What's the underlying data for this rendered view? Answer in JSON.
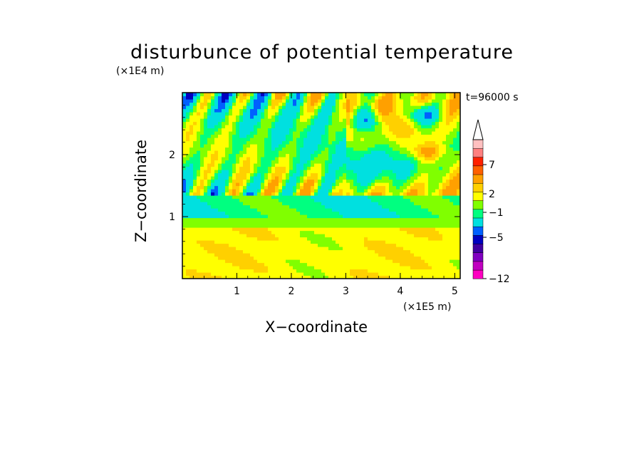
{
  "chart_data": {
    "type": "heatmap",
    "title": "disturbunce of potential temperature",
    "xlabel": "X−coordinate",
    "ylabel": "Z−coordinate",
    "x_unit": "(×1E5 m)",
    "y_unit": "(×1E4 m)",
    "annotation": "t=96000 s",
    "xlim": [
      0,
      5.1
    ],
    "ylim": [
      0,
      3.0
    ],
    "x_ticks": [
      "1",
      "2",
      "3",
      "4",
      "5"
    ],
    "x_tick_values": [
      1,
      2,
      3,
      4,
      5
    ],
    "y_ticks": [
      "1",
      "2"
    ],
    "y_tick_values": [
      1,
      2
    ],
    "colorbar": {
      "levels": [
        -12,
        -9,
        -7,
        -5,
        -3,
        -1,
        1,
        2,
        3,
        5,
        7,
        9,
        11
      ],
      "tick_labels": [
        "−12",
        "−5",
        "−1",
        "2",
        "7"
      ],
      "tick_values": [
        -12,
        -5,
        -1,
        2,
        7
      ],
      "colors": [
        "#ff00c0",
        "#c000c0",
        "#8000c0",
        "#4000a0",
        "#0000c0",
        "#0060ff",
        "#00e0e0",
        "#00ff80",
        "#80ff00",
        "#ffff00",
        "#ffd000",
        "#ffa000",
        "#ff6000",
        "#ff2000",
        "#ff8080",
        "#ffc0c0"
      ],
      "extend": "max"
    },
    "pattern_description": "Mixed warm/cool layering; strong positive and negative anomalies above 1.3 (x1E4 m) with tilted bands near x=1-2 and large negative cells near x=3-5 at upper levels; weak warm anomaly (yellow/orange) below 0.9."
  }
}
